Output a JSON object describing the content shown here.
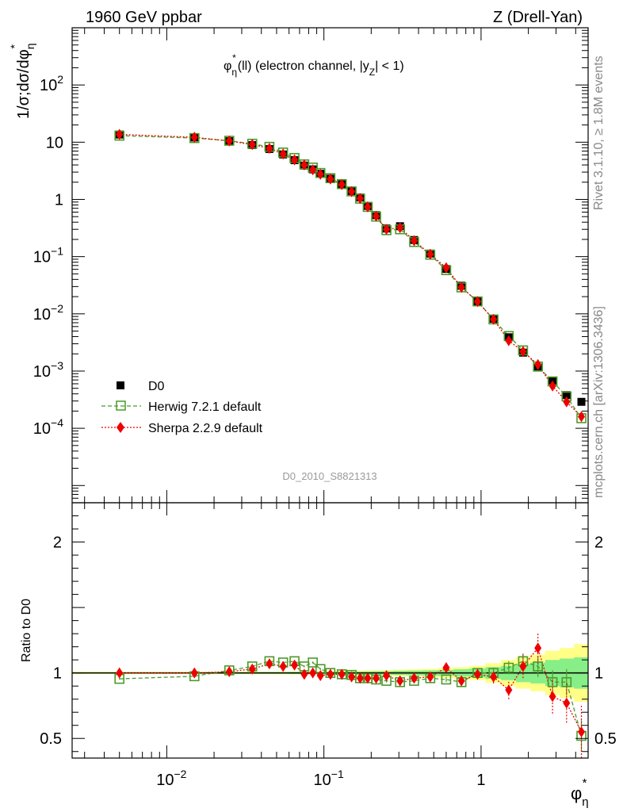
{
  "header": {
    "left": "1960 GeV ppbar",
    "right": "Z (Drell-Yan)",
    "subtitle_main": "φ",
    "subtitle_sup": "*",
    "subtitle_sub": "η",
    "subtitle_rest": "(ll) (electron channel, |y",
    "subtitle_z": "Z",
    "subtitle_end": "| < 1)"
  },
  "side": {
    "rivet": "Rivet 3.1.10, ≥ 1.8M events",
    "mcplots": "mcplots.cern.ch [arXiv:1306.3436]"
  },
  "watermark": "D0_2010_S8821313",
  "legend": [
    {
      "label": "D0",
      "color": "#000000"
    },
    {
      "label": "Herwig 7.2.1 default",
      "color": "#4c9a2a"
    },
    {
      "label": "Sherpa 2.2.9 default",
      "color": "#ee0000"
    }
  ],
  "colors": {
    "data": "#000000",
    "herwig": "#4c9a2a",
    "sherpa": "#ee0000",
    "band_inner": "#88ee88",
    "band_outer": "#ffff88"
  },
  "chart_data": [
    {
      "type": "scatter",
      "panel": "main",
      "ylabel": "1/σ;dσ/dφ",
      "ylabel_sup": "*",
      "ylabel_sub": "η",
      "yscale": "log",
      "xscale": "log",
      "xlim": [
        0.0025,
        4.8
      ],
      "ylim": [
        5e-06,
        1000
      ],
      "y_ticks": [
        {
          "v": 0.0001,
          "m": "10",
          "e": "−4"
        },
        {
          "v": 0.001,
          "m": "10",
          "e": "−3"
        },
        {
          "v": 0.01,
          "m": "10",
          "e": "−2"
        },
        {
          "v": 0.1,
          "m": "10",
          "e": "−1"
        },
        {
          "v": 1,
          "m": "1",
          "e": ""
        },
        {
          "v": 10,
          "m": "10",
          "e": ""
        },
        {
          "v": 100,
          "m": "10",
          "e": "2"
        }
      ],
      "x": [
        0.005,
        0.015,
        0.025,
        0.035,
        0.045,
        0.055,
        0.065,
        0.075,
        0.085,
        0.095,
        0.11,
        0.13,
        0.15,
        0.17,
        0.19,
        0.215,
        0.25,
        0.305,
        0.375,
        0.475,
        0.6,
        0.75,
        0.95,
        1.2,
        1.5,
        1.85,
        2.3,
        2.85,
        3.5,
        4.35
      ],
      "series": [
        {
          "name": "D0",
          "marker": "square",
          "values": [
            13.6,
            12.1,
            10.4,
            8.9,
            7.6,
            6.1,
            4.85,
            3.9,
            3.35,
            2.8,
            2.3,
            1.83,
            1.4,
            1.08,
            0.77,
            0.53,
            0.31,
            0.34,
            0.195,
            0.113,
            0.061,
            0.031,
            0.0165,
            0.0082,
            0.0039,
            0.0021,
            0.00115,
            0.00068,
            0.00038,
            0.00029
          ]
        },
        {
          "name": "Herwig 7.2.1 default",
          "marker": "open-square",
          "values": [
            13.0,
            11.8,
            10.6,
            9.4,
            8.3,
            6.6,
            5.3,
            4.1,
            3.6,
            2.9,
            2.35,
            1.85,
            1.38,
            1.03,
            0.74,
            0.5,
            0.29,
            0.3,
            0.18,
            0.108,
            0.058,
            0.029,
            0.0165,
            0.008,
            0.0041,
            0.0023,
            0.0012,
            0.00066,
            0.00036,
            0.00015
          ]
        },
        {
          "name": "Sherpa 2.2.9 default",
          "marker": "diamond",
          "values": [
            13.7,
            12.2,
            10.5,
            9.1,
            7.8,
            6.2,
            4.9,
            4.0,
            3.3,
            2.75,
            2.27,
            1.82,
            1.37,
            1.04,
            0.74,
            0.51,
            0.3,
            0.32,
            0.19,
            0.11,
            0.064,
            0.029,
            0.0164,
            0.008,
            0.0034,
            0.0022,
            0.0013,
            0.00055,
            0.00029,
            0.00016
          ]
        }
      ]
    },
    {
      "type": "line",
      "panel": "ratio",
      "ylabel": "Ratio to D0",
      "xlabel": "φ",
      "xlabel_sup": "*",
      "xlabel_sub": "η",
      "xscale": "log",
      "xlim": [
        0.0025,
        4.8
      ],
      "ylim": [
        0.35,
        2.3
      ],
      "y_ticks": [
        0.5,
        1,
        2
      ],
      "y_tick_labels": [
        "0.5",
        "1",
        "2"
      ],
      "x_ticks": [
        0.01,
        0.1,
        1
      ],
      "x_tick_labels": [
        {
          "m": "10",
          "e": "−2"
        },
        {
          "m": "10",
          "e": "−1"
        },
        {
          "m": "1",
          "e": ""
        }
      ],
      "x": [
        0.005,
        0.015,
        0.025,
        0.035,
        0.045,
        0.055,
        0.065,
        0.075,
        0.085,
        0.095,
        0.11,
        0.13,
        0.15,
        0.17,
        0.19,
        0.215,
        0.25,
        0.305,
        0.375,
        0.475,
        0.6,
        0.75,
        0.95,
        1.2,
        1.5,
        1.85,
        2.3,
        2.85,
        3.5,
        4.35
      ],
      "band_inner": [
        0.005,
        0.005,
        0.006,
        0.006,
        0.007,
        0.007,
        0.008,
        0.008,
        0.008,
        0.009,
        0.009,
        0.01,
        0.01,
        0.011,
        0.012,
        0.013,
        0.014,
        0.016,
        0.018,
        0.02,
        0.023,
        0.028,
        0.035,
        0.045,
        0.055,
        0.07,
        0.08,
        0.1,
        0.11,
        0.12
      ],
      "band_outer": [
        0.008,
        0.008,
        0.009,
        0.01,
        0.01,
        0.011,
        0.012,
        0.012,
        0.013,
        0.014,
        0.015,
        0.016,
        0.017,
        0.018,
        0.019,
        0.02,
        0.022,
        0.025,
        0.028,
        0.032,
        0.038,
        0.045,
        0.055,
        0.075,
        0.1,
        0.12,
        0.14,
        0.17,
        0.19,
        0.22
      ],
      "series": [
        {
          "name": "Herwig 7.2.1 default",
          "values": [
            0.955,
            0.975,
            1.02,
            1.05,
            1.09,
            1.08,
            1.09,
            1.05,
            1.08,
            1.03,
            1.0,
            0.99,
            0.985,
            0.96,
            0.96,
            0.95,
            0.94,
            0.93,
            0.94,
            0.96,
            0.95,
            0.93,
            1.0,
            1.0,
            1.04,
            1.09,
            1.05,
            0.93,
            0.93,
            0.52
          ],
          "errors": [
            0.005,
            0.005,
            0.006,
            0.006,
            0.007,
            0.007,
            0.007,
            0.008,
            0.008,
            0.008,
            0.009,
            0.009,
            0.01,
            0.01,
            0.011,
            0.012,
            0.013,
            0.015,
            0.016,
            0.018,
            0.02,
            0.025,
            0.03,
            0.04,
            0.05,
            0.06,
            0.08,
            0.09,
            0.1,
            0.12
          ]
        },
        {
          "name": "Sherpa 2.2.9 default",
          "values": [
            1.0,
            1.0,
            1.01,
            1.03,
            1.07,
            1.05,
            1.06,
            0.99,
            1.0,
            0.98,
            0.99,
            0.99,
            0.97,
            0.96,
            0.96,
            0.96,
            0.98,
            0.94,
            0.96,
            0.97,
            1.04,
            0.94,
            0.99,
            0.97,
            0.87,
            1.05,
            1.19,
            0.82,
            0.77,
            0.55
          ],
          "errors": [
            0.005,
            0.005,
            0.006,
            0.006,
            0.007,
            0.007,
            0.007,
            0.008,
            0.008,
            0.008,
            0.009,
            0.009,
            0.01,
            0.01,
            0.011,
            0.012,
            0.013,
            0.015,
            0.016,
            0.018,
            0.02,
            0.025,
            0.03,
            0.05,
            0.07,
            0.09,
            0.12,
            0.13,
            0.15,
            0.2
          ]
        }
      ]
    }
  ]
}
